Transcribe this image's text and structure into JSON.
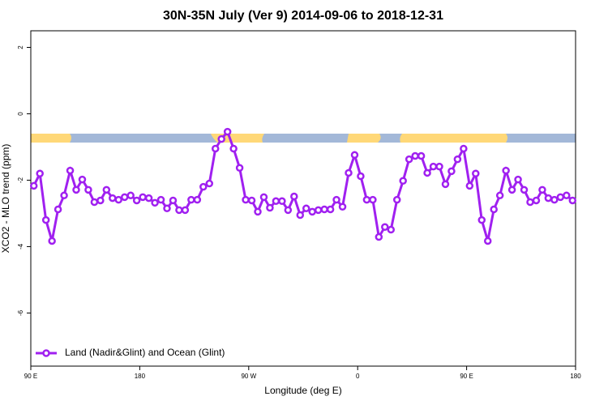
{
  "chart_data": {
    "type": "line",
    "title": "30N-35N July (Ver 9)   2014-09-06 to 2018-12-31",
    "x_label": "Longitude (deg E)",
    "y_label": "XCO2 - MLO trend (ppm)",
    "x": [
      92.5,
      97.5,
      102.5,
      107.5,
      112.5,
      117.5,
      122.5,
      127.5,
      132.5,
      137.5,
      142.5,
      147.5,
      152.5,
      157.5,
      162.5,
      167.5,
      172.5,
      177.5,
      182.5,
      187.5,
      192.5,
      197.5,
      202.5,
      207.5,
      212.5,
      217.5,
      222.5,
      227.5,
      232.5,
      237.5,
      242.5,
      247.5,
      252.5,
      257.5,
      262.5,
      267.5,
      272.5,
      277.5,
      282.5,
      287.5,
      292.5,
      297.5,
      302.5,
      307.5,
      312.5,
      317.5,
      322.5,
      327.5,
      332.5,
      337.5,
      342.5,
      347.5,
      352.5,
      357.5,
      362.5,
      367.5,
      372.5,
      377.5,
      382.5,
      387.5,
      392.5,
      397.5,
      402.5,
      407.5,
      412.5,
      417.5,
      422.5,
      427.5,
      432.5,
      437.5,
      442.5,
      447.5,
      452.5,
      457.5,
      462.5,
      467.5,
      472.5,
      477.5,
      482.5,
      487.5,
      492.5,
      497.5,
      502.5,
      507.5,
      512.5,
      517.5,
      522.5,
      527.5,
      532.5,
      537.5
    ],
    "series": [
      {
        "name": "Land (Nadir&Glint) and Ocean (Glint)",
        "color": "#a020f0",
        "values": [
          -2.17,
          -1.8,
          -3.2,
          -3.83,
          -2.88,
          -2.46,
          -1.71,
          -2.29,
          -1.98,
          -2.29,
          -2.66,
          -2.61,
          -2.29,
          -2.54,
          -2.59,
          -2.51,
          -2.46,
          -2.61,
          -2.51,
          -2.54,
          -2.68,
          -2.59,
          -2.85,
          -2.61,
          -2.9,
          -2.9,
          -2.59,
          -2.59,
          -2.2,
          -2.1,
          -1.05,
          -0.76,
          -0.54,
          -1.05,
          -1.63,
          -2.59,
          -2.61,
          -2.95,
          -2.51,
          -2.83,
          -2.63,
          -2.63,
          -2.9,
          -2.49,
          -3.05,
          -2.85,
          -2.95,
          -2.9,
          -2.88,
          -2.88,
          -2.59,
          -2.8,
          -1.78,
          -1.24,
          -1.88,
          -2.59,
          -2.59,
          -3.71,
          -3.41,
          -3.49,
          -2.59,
          -2.02,
          -1.37,
          -1.27,
          -1.27,
          -1.78,
          -1.59,
          -1.59,
          -2.12,
          -1.73,
          -1.37,
          -1.05,
          -2.17,
          -1.8,
          -3.2,
          -3.83,
          -2.88,
          -2.46,
          -1.71,
          -2.29,
          -1.98,
          -2.29,
          -2.66,
          -2.61,
          -2.29,
          -2.54,
          -2.59,
          -2.51,
          -2.46,
          -2.61
        ]
      }
    ],
    "xlim": [
      90,
      540
    ],
    "xticks": [
      {
        "value": 90,
        "label": "90 E"
      },
      180,
      {
        "value": 270,
        "label": "90 W"
      },
      {
        "value": 360,
        "label": "0"
      },
      {
        "value": 450,
        "label": "90 E"
      },
      {
        "value": 540,
        "label": "180"
      }
    ],
    "ylim": [
      -7.6,
      2.5
    ],
    "yticks": [
      -6,
      -4,
      -2,
      0,
      2
    ],
    "legend": "bottom-left"
  }
}
